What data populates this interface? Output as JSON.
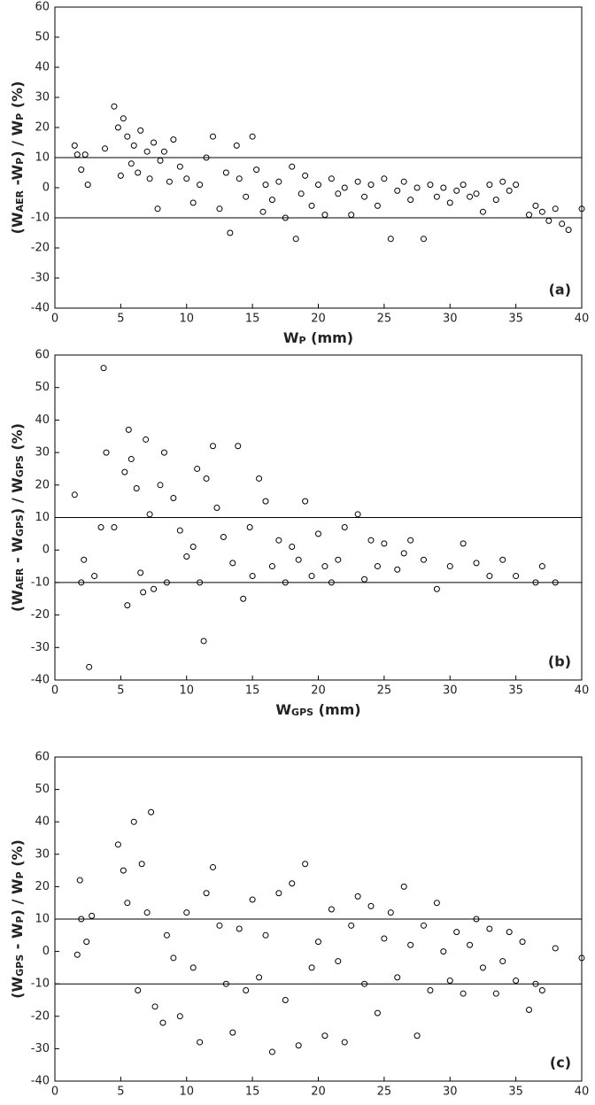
{
  "chart_data": [
    {
      "type": "scatter",
      "annotation": "(a)",
      "xlabel": [
        "W",
        "P",
        " (mm)"
      ],
      "ylabel": [
        "(W",
        "AER",
        " -W",
        "P",
        ") / W",
        "P",
        " (%)"
      ],
      "xlim": [
        0,
        40
      ],
      "ylim": [
        -40,
        60
      ],
      "xticks": [
        0,
        5,
        10,
        15,
        20,
        25,
        30,
        35,
        40
      ],
      "yticks": [
        -40,
        -30,
        -20,
        -10,
        0,
        10,
        20,
        30,
        40,
        50,
        60
      ],
      "hlines": [
        10,
        -10
      ],
      "color": "#000000",
      "x": [
        1.5,
        1.7,
        2,
        2.3,
        2.5,
        3.8,
        4.5,
        4.8,
        5,
        5.2,
        5.5,
        5.8,
        6,
        6.3,
        6.5,
        7,
        7.2,
        7.5,
        7.8,
        8,
        8.3,
        8.7,
        9,
        9.5,
        10,
        10.5,
        11,
        11.5,
        12,
        12.5,
        13,
        13.3,
        13.8,
        14,
        14.5,
        15,
        15.3,
        15.8,
        16,
        16.5,
        17,
        17.5,
        18,
        18.3,
        18.7,
        19,
        19.5,
        20,
        20.5,
        21,
        21.5,
        22,
        22.5,
        23,
        23.5,
        24,
        24.5,
        25,
        25.5,
        26,
        26.5,
        27,
        27.5,
        28,
        28.5,
        29,
        29.5,
        30,
        30.5,
        31,
        31.5,
        32,
        32.5,
        33,
        33.5,
        34,
        34.5,
        35,
        36,
        36.5,
        37,
        37.5,
        38,
        38.5,
        39,
        40
      ],
      "y": [
        14,
        11,
        6,
        11,
        1,
        13,
        27,
        20,
        4,
        23,
        17,
        8,
        14,
        5,
        19,
        12,
        3,
        15,
        -7,
        9,
        12,
        2,
        16,
        7,
        3,
        -5,
        1,
        10,
        17,
        -7,
        5,
        -15,
        14,
        3,
        -3,
        17,
        6,
        -8,
        1,
        -4,
        2,
        -10,
        7,
        -17,
        -2,
        4,
        -6,
        1,
        -9,
        3,
        -2,
        0,
        -9,
        2,
        -3,
        1,
        -6,
        3,
        -17,
        -1,
        2,
        -4,
        0,
        -17,
        1,
        -3,
        0,
        -5,
        -1,
        1,
        -3,
        -2,
        -8,
        1,
        -4,
        2,
        -1,
        1,
        -9,
        -6,
        -8,
        -11,
        -7,
        -12,
        -14,
        -7
      ]
    },
    {
      "type": "scatter",
      "annotation": "(b)",
      "xlabel": [
        "W",
        "GPS",
        " (mm)"
      ],
      "ylabel": [
        "(W",
        "AER",
        " - W",
        "GPS",
        ") / W",
        "GPS",
        "  (%)"
      ],
      "xlim": [
        0,
        40
      ],
      "ylim": [
        -40,
        60
      ],
      "xticks": [
        0,
        5,
        10,
        15,
        20,
        25,
        30,
        35,
        40
      ],
      "yticks": [
        -40,
        -30,
        -20,
        -10,
        0,
        10,
        20,
        30,
        40,
        50,
        60
      ],
      "hlines": [
        10,
        -10
      ],
      "color": "#000000",
      "x": [
        1.5,
        2,
        2.2,
        2.6,
        3,
        3.5,
        3.7,
        3.9,
        4.5,
        5.3,
        5.5,
        5.6,
        5.8,
        6.2,
        6.5,
        6.7,
        6.9,
        7.2,
        7.5,
        8,
        8.3,
        8.5,
        9,
        9.5,
        10,
        10.5,
        10.8,
        11,
        11.3,
        11.5,
        12,
        12.3,
        12.8,
        13.5,
        13.9,
        14.3,
        14.8,
        15,
        15.5,
        16,
        16.5,
        17,
        17.5,
        18,
        18.5,
        19,
        19.5,
        20,
        20.5,
        21,
        21.5,
        22,
        23,
        23.5,
        24,
        24.5,
        25,
        26,
        26.5,
        27,
        28,
        29,
        30,
        31,
        32,
        33,
        34,
        35,
        36.5,
        37,
        38
      ],
      "y": [
        17,
        -10,
        -3,
        -36,
        -8,
        7,
        56,
        30,
        7,
        24,
        -17,
        37,
        28,
        19,
        -7,
        -13,
        34,
        11,
        -12,
        20,
        30,
        -10,
        16,
        6,
        -2,
        1,
        25,
        -10,
        -28,
        22,
        32,
        13,
        4,
        -4,
        32,
        -15,
        7,
        -8,
        22,
        15,
        -5,
        3,
        -10,
        1,
        -3,
        15,
        -8,
        5,
        -5,
        -10,
        -3,
        7,
        11,
        -9,
        3,
        -5,
        2,
        -6,
        -1,
        3,
        -3,
        -12,
        -5,
        2,
        -4,
        -8,
        -3,
        -8,
        -10,
        -5,
        -10
      ]
    },
    {
      "type": "scatter",
      "annotation": "(c)",
      "xlabel": [
        "W",
        "P",
        " (mm)"
      ],
      "ylabel": [
        "(W",
        "GPS",
        " - W",
        "P",
        ") / W",
        "P",
        " (%)"
      ],
      "xlim": [
        0,
        40
      ],
      "ylim": [
        -40,
        60
      ],
      "xticks": [
        0,
        5,
        10,
        15,
        20,
        25,
        30,
        35,
        40
      ],
      "yticks": [
        -40,
        -30,
        -20,
        -10,
        0,
        10,
        20,
        30,
        40,
        50,
        60
      ],
      "hlines": [
        10,
        -10
      ],
      "color": "#000000",
      "x": [
        1.7,
        1.9,
        2,
        2.4,
        2.8,
        4.8,
        5.2,
        5.5,
        6,
        6.3,
        6.6,
        7,
        7.3,
        7.6,
        8.2,
        8.5,
        9,
        9.5,
        10,
        10.5,
        11,
        11.5,
        12,
        12.5,
        13,
        13.5,
        14,
        14.5,
        15,
        15.5,
        16,
        16.5,
        17,
        17.5,
        18,
        18.5,
        19,
        19.5,
        20,
        20.5,
        21,
        21.5,
        22,
        22.5,
        23,
        23.5,
        24,
        24.5,
        25,
        25.5,
        26,
        26.5,
        27,
        27.5,
        28,
        28.5,
        29,
        29.5,
        30,
        30.5,
        31,
        31.5,
        32,
        32.5,
        33,
        33.5,
        34,
        34.5,
        35,
        35.5,
        36,
        36.5,
        37,
        38,
        40
      ],
      "y": [
        -1,
        22,
        10,
        3,
        11,
        33,
        25,
        15,
        40,
        -12,
        27,
        12,
        43,
        -17,
        -22,
        5,
        -2,
        -20,
        12,
        -5,
        -28,
        18,
        26,
        8,
        -10,
        -25,
        7,
        -12,
        16,
        -8,
        5,
        -31,
        18,
        -15,
        21,
        -29,
        27,
        -5,
        3,
        -26,
        13,
        -3,
        -28,
        8,
        17,
        -10,
        14,
        -19,
        4,
        12,
        -8,
        20,
        2,
        -26,
        8,
        -12,
        15,
        0,
        -9,
        6,
        -13,
        2,
        10,
        -5,
        7,
        -13,
        -3,
        6,
        -9,
        3,
        -18,
        -10,
        -12,
        1,
        -2
      ]
    }
  ]
}
